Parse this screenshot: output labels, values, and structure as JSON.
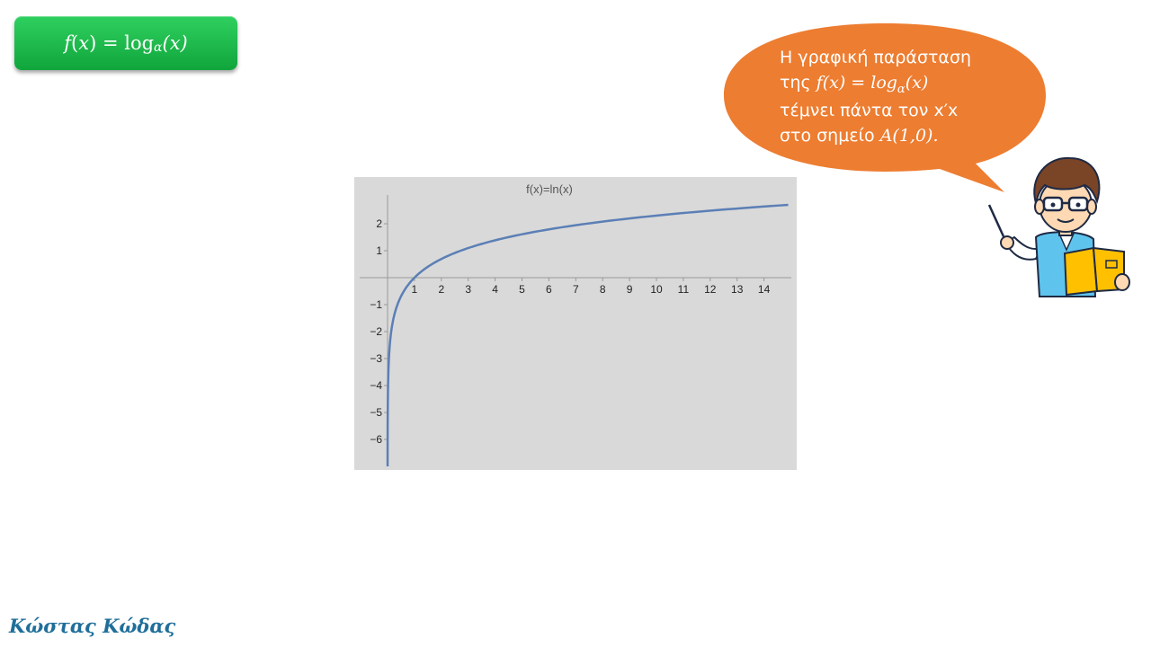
{
  "title_badge": {
    "func": "f",
    "arg_open": "(",
    "var": "x",
    "arg_close": ")",
    "equals": " = ",
    "log": "log",
    "base": "α",
    "arg": "(x)"
  },
  "bubble": {
    "line1": "Η γραφική παράσταση",
    "line2_prefix": "της ",
    "line2_math": "f(x) = log",
    "line2_base": "α",
    "line2_arg": "(x)",
    "line3": "τέμνει πάντα τον x′x",
    "line4_prefix": "στο σημείο ",
    "line4_math": "A(1,0).",
    "color": "#ed7d31"
  },
  "signature": "Κώστας Κώδας",
  "chart_data": {
    "type": "line",
    "title": "f(x)=ln(x)",
    "function": "ln(x)",
    "xlim": [
      -1,
      15
    ],
    "ylim": [
      -7.0,
      2.9
    ],
    "x_ticks": [
      "1",
      "2",
      "3",
      "4",
      "5",
      "6",
      "7",
      "8",
      "9",
      "10",
      "11",
      "12",
      "13",
      "14"
    ],
    "y_ticks": [
      "2",
      "1",
      "−1",
      "−2",
      "−3",
      "−4",
      "−5",
      "−6"
    ],
    "series": [
      {
        "color": "#5b7fb6"
      }
    ],
    "background": "#d9d9d9",
    "grid": false
  }
}
